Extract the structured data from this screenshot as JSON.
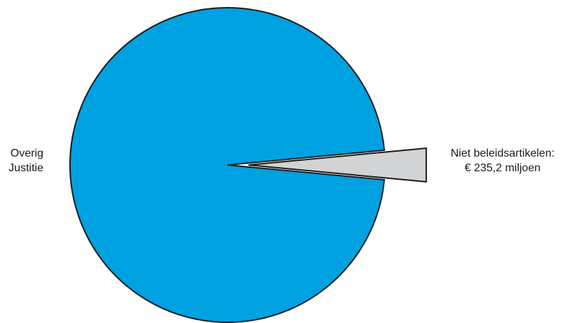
{
  "chart_data": {
    "type": "pie",
    "slices": [
      {
        "label_lines": [
          "Overig",
          "Justitie"
        ],
        "value_share": 0.97,
        "color": "#00a1e1",
        "exploded": false
      },
      {
        "label_lines": [
          "Niet beleidsartikelen:",
          "€ 235,2 miljoen"
        ],
        "value_share": 0.03,
        "color": "#d2d3d5",
        "exploded": true
      }
    ],
    "title": "",
    "legend": "none",
    "outline_color": "#1a1a1a"
  }
}
